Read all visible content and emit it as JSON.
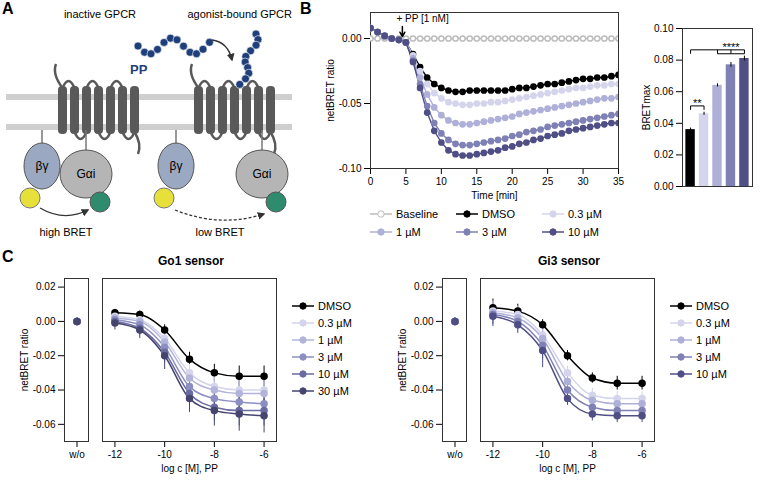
{
  "diagram": {
    "panel": "A",
    "left_label": "inactive GPCR",
    "right_label": "agonist-bound GPCR",
    "ligand": "PP",
    "beta_gamma": "βγ",
    "alpha": "Gαi",
    "left_bret": "high BRET",
    "right_bret": "low BRET"
  },
  "chart_data": [
    {
      "panel": "B",
      "type": "line",
      "x_label": "Time [min]",
      "y_label": "netBRET ratio",
      "x": [
        0,
        1,
        2,
        3,
        4,
        5,
        6,
        7,
        8,
        9,
        10,
        11,
        12,
        13,
        14,
        15,
        16,
        17,
        18,
        19,
        20,
        21,
        22,
        23,
        24,
        25,
        26,
        27,
        28,
        29,
        30,
        31,
        32,
        33,
        34,
        35
      ],
      "xlim": [
        0,
        35
      ],
      "xticks": [
        0,
        5,
        10,
        15,
        20,
        25,
        30,
        35
      ],
      "ylim": [
        -0.1,
        0.02
      ],
      "yticks": [
        {
          "value": -0.1,
          "label": "-0.10"
        },
        -0.05,
        {
          "value": 0,
          "label": "0.00"
        }
      ],
      "legend": "bottom",
      "marker": "circle",
      "annotations": [
        {
          "text": "+ PP [1 nM]",
          "x": 4.5
        }
      ],
      "series": [
        {
          "name": "Baseline",
          "color": "#bdbdbd",
          "marker": "open_circle",
          "values": [
            0,
            0,
            0,
            0,
            0,
            0,
            0,
            0,
            0,
            0,
            0,
            0,
            0,
            0,
            0,
            0,
            0,
            0,
            0,
            0,
            0,
            0,
            0,
            0,
            0,
            0,
            0,
            0,
            0,
            0,
            0,
            0,
            0,
            0,
            0,
            0
          ]
        },
        {
          "name": "DMSO",
          "color": "#000000",
          "values": [
            0.008,
            0.005,
            0.002,
            0,
            -0.001,
            -0.003,
            -0.012,
            -0.022,
            -0.03,
            -0.035,
            -0.038,
            -0.04,
            -0.041,
            -0.041,
            -0.04,
            -0.04,
            -0.04,
            -0.04,
            -0.04,
            -0.04,
            -0.039,
            -0.038,
            -0.038,
            -0.037,
            -0.036,
            -0.035,
            -0.035,
            -0.034,
            -0.033,
            -0.032,
            -0.031,
            -0.031,
            -0.03,
            -0.03,
            -0.029,
            -0.028
          ]
        },
        {
          "name": "0.3 µM",
          "color": "#d4d5ec",
          "values": [
            0.008,
            0.005,
            0.002,
            0,
            -0.001,
            -0.003,
            -0.013,
            -0.025,
            -0.035,
            -0.042,
            -0.046,
            -0.049,
            -0.05,
            -0.051,
            -0.051,
            -0.05,
            -0.05,
            -0.049,
            -0.049,
            -0.048,
            -0.047,
            -0.046,
            -0.045,
            -0.044,
            -0.043,
            -0.042,
            -0.041,
            -0.04,
            -0.039,
            -0.038,
            -0.038,
            -0.037,
            -0.036,
            -0.036,
            -0.035,
            -0.035
          ]
        },
        {
          "name": "1 µM",
          "color": "#aeb0d8",
          "values": [
            0.008,
            0.005,
            0.002,
            0,
            -0.001,
            -0.003,
            -0.015,
            -0.03,
            -0.043,
            -0.053,
            -0.059,
            -0.063,
            -0.065,
            -0.066,
            -0.066,
            -0.065,
            -0.064,
            -0.063,
            -0.062,
            -0.061,
            -0.06,
            -0.058,
            -0.057,
            -0.056,
            -0.055,
            -0.054,
            -0.053,
            -0.052,
            -0.051,
            -0.05,
            -0.049,
            -0.048,
            -0.047,
            -0.046,
            -0.046,
            -0.045
          ]
        },
        {
          "name": "3 µM",
          "color": "#7f81b5",
          "values": [
            0.008,
            0.005,
            0.002,
            0,
            -0.001,
            -0.003,
            -0.017,
            -0.035,
            -0.052,
            -0.065,
            -0.073,
            -0.078,
            -0.081,
            -0.082,
            -0.082,
            -0.081,
            -0.08,
            -0.079,
            -0.078,
            -0.077,
            -0.075,
            -0.074,
            -0.072,
            -0.071,
            -0.07,
            -0.068,
            -0.067,
            -0.066,
            -0.065,
            -0.064,
            -0.063,
            -0.062,
            -0.061,
            -0.06,
            -0.059,
            -0.058
          ]
        },
        {
          "name": "10 µM",
          "color": "#4f4f86",
          "values": [
            0.008,
            0.005,
            0.002,
            0,
            -0.001,
            -0.003,
            -0.018,
            -0.038,
            -0.057,
            -0.071,
            -0.08,
            -0.086,
            -0.089,
            -0.09,
            -0.09,
            -0.089,
            -0.088,
            -0.087,
            -0.086,
            -0.084,
            -0.083,
            -0.081,
            -0.08,
            -0.078,
            -0.077,
            -0.075,
            -0.074,
            -0.073,
            -0.071,
            -0.07,
            -0.069,
            -0.068,
            -0.067,
            -0.066,
            -0.065,
            -0.065
          ]
        }
      ]
    },
    {
      "type": "bar",
      "y_label": "BRETmax",
      "categories": [
        null,
        null,
        null,
        null,
        null
      ],
      "values": [
        0.036,
        0.046,
        0.064,
        0.077,
        0.081
      ],
      "errors": [
        0.001,
        0.001,
        0.001,
        0.0015,
        0.0015
      ],
      "colors": [
        "#000000",
        "#d4d5ec",
        "#aeb0d8",
        "#7f81b5",
        "#4f4f86"
      ],
      "ylim": [
        0,
        0.1
      ],
      "yticks": [
        {
          "value": 0,
          "label": "0.00"
        },
        0.02,
        0.04,
        0.06,
        0.08,
        {
          "value": 0.1,
          "label": "0.10"
        }
      ],
      "tick_labels": "y",
      "annotations": [
        {
          "text": "**",
          "between": [
            0,
            1
          ]
        },
        {
          "text": "****",
          "between": [
            0,
            2,
            3,
            4
          ]
        }
      ]
    },
    {
      "panel": "C",
      "type": "line",
      "title": "Go1 sensor",
      "x_label": "log c [M], PP",
      "y_label": "netBRET ratio",
      "x": [
        -12,
        -11,
        -10,
        -9,
        -8,
        -7,
        -6
      ],
      "xlim": [
        -12.5,
        -5.5
      ],
      "xticks": [
        -12,
        -10,
        -8,
        -6
      ],
      "ylim": [
        -0.07,
        0.025
      ],
      "yticks": [
        0.02,
        {
          "value": 0,
          "label": "0.00"
        },
        -0.02,
        -0.04,
        -0.06
      ],
      "reference_label": "w/o",
      "legend": "right",
      "marker": "circle",
      "series": [
        {
          "name": "DMSO",
          "color": "#000000",
          "values": [
            0.005,
            0.004,
            -0.005,
            -0.022,
            -0.03,
            -0.032,
            -0.032
          ],
          "errors": [
            0.002,
            0.002,
            0.003,
            0.004,
            0.005,
            0.006,
            0.006
          ],
          "reference_value": 0,
          "reference_error": 0.002
        },
        {
          "name": "0.3 µM",
          "color": "#d4d5ec",
          "values": [
            0.003,
            0.001,
            -0.01,
            -0.03,
            -0.038,
            -0.04,
            -0.04
          ],
          "errors": [
            0.003,
            0.003,
            0.004,
            0.005,
            0.006,
            0.006,
            0.006
          ],
          "reference_value": 0,
          "reference_error": 0.002
        },
        {
          "name": "1 µM",
          "color": "#b2b4da",
          "values": [
            0.002,
            0,
            -0.012,
            -0.033,
            -0.04,
            -0.042,
            -0.042
          ],
          "errors": [
            0.003,
            0.003,
            0.004,
            0.005,
            0.006,
            0.007,
            0.007
          ],
          "reference_value": 0,
          "reference_error": 0.002
        },
        {
          "name": "3 µM",
          "color": "#8d8fc2",
          "values": [
            0.001,
            -0.002,
            -0.015,
            -0.038,
            -0.045,
            -0.047,
            -0.048
          ],
          "errors": [
            0.003,
            0.004,
            0.005,
            0.006,
            0.007,
            0.008,
            0.008
          ],
          "reference_value": 0,
          "reference_error": 0.002
        },
        {
          "name": "10 µM",
          "color": "#6a6ba0",
          "values": [
            0,
            -0.004,
            -0.018,
            -0.042,
            -0.05,
            -0.052,
            -0.052
          ],
          "errors": [
            0.003,
            0.004,
            0.006,
            0.007,
            0.008,
            0.009,
            0.009
          ],
          "reference_value": 0,
          "reference_error": 0.002
        },
        {
          "name": "30 µM",
          "color": "#45456f",
          "values": [
            -0.001,
            -0.005,
            -0.02,
            -0.045,
            -0.052,
            -0.054,
            -0.055
          ],
          "errors": [
            0.004,
            0.005,
            0.008,
            0.008,
            0.009,
            0.01,
            0.01
          ],
          "reference_value": 0,
          "reference_error": 0.002
        }
      ]
    },
    {
      "type": "line",
      "title": "Gi3 sensor",
      "x_label": "log c [M], PP",
      "y_label": "netBRET ratio",
      "x": [
        -12,
        -11,
        -10,
        -9,
        -8,
        -7,
        -6
      ],
      "xlim": [
        -12.5,
        -5.5
      ],
      "xticks": [
        -12,
        -10,
        -8,
        -6
      ],
      "ylim": [
        -0.07,
        0.025
      ],
      "yticks": [
        0.02,
        {
          "value": 0,
          "label": "0.00"
        },
        -0.02,
        -0.04,
        -0.06
      ],
      "reference_label": "w/o",
      "legend": "right",
      "marker": "circle",
      "series": [
        {
          "name": "DMSO",
          "color": "#000000",
          "values": [
            0.008,
            0.006,
            -0.002,
            -0.02,
            -0.033,
            -0.036,
            -0.036
          ],
          "errors": [
            0.005,
            0.004,
            0.003,
            0.003,
            0.003,
            0.004,
            0.004
          ],
          "reference_value": 0,
          "reference_error": 0.002
        },
        {
          "name": "0.3 µM",
          "color": "#d4d5ec",
          "values": [
            0.006,
            0.004,
            -0.008,
            -0.03,
            -0.043,
            -0.045,
            -0.045
          ],
          "errors": [
            0.006,
            0.005,
            0.006,
            0.004,
            0.004,
            0.004,
            0.004
          ],
          "reference_value": 0,
          "reference_error": 0.002
        },
        {
          "name": "1 µM",
          "color": "#aeb0d8",
          "values": [
            0.005,
            0.002,
            -0.01,
            -0.035,
            -0.046,
            -0.048,
            -0.048
          ],
          "errors": [
            0.006,
            0.005,
            0.006,
            0.004,
            0.004,
            0.004,
            0.004
          ],
          "reference_value": 0,
          "reference_error": 0.002
        },
        {
          "name": "3 µM",
          "color": "#7f81b5",
          "values": [
            0.004,
            0,
            -0.014,
            -0.04,
            -0.05,
            -0.052,
            -0.052
          ],
          "errors": [
            0.006,
            0.005,
            0.008,
            0.004,
            0.004,
            0.004,
            0.004
          ],
          "reference_value": 0,
          "reference_error": 0.002
        },
        {
          "name": "10 µM",
          "color": "#4f4f86",
          "values": [
            0.003,
            -0.002,
            -0.017,
            -0.045,
            -0.054,
            -0.055,
            -0.055
          ],
          "errors": [
            0.006,
            0.005,
            0.01,
            0.004,
            0.004,
            0.004,
            0.004
          ],
          "reference_value": 0,
          "reference_error": 0.002
        }
      ]
    }
  ]
}
